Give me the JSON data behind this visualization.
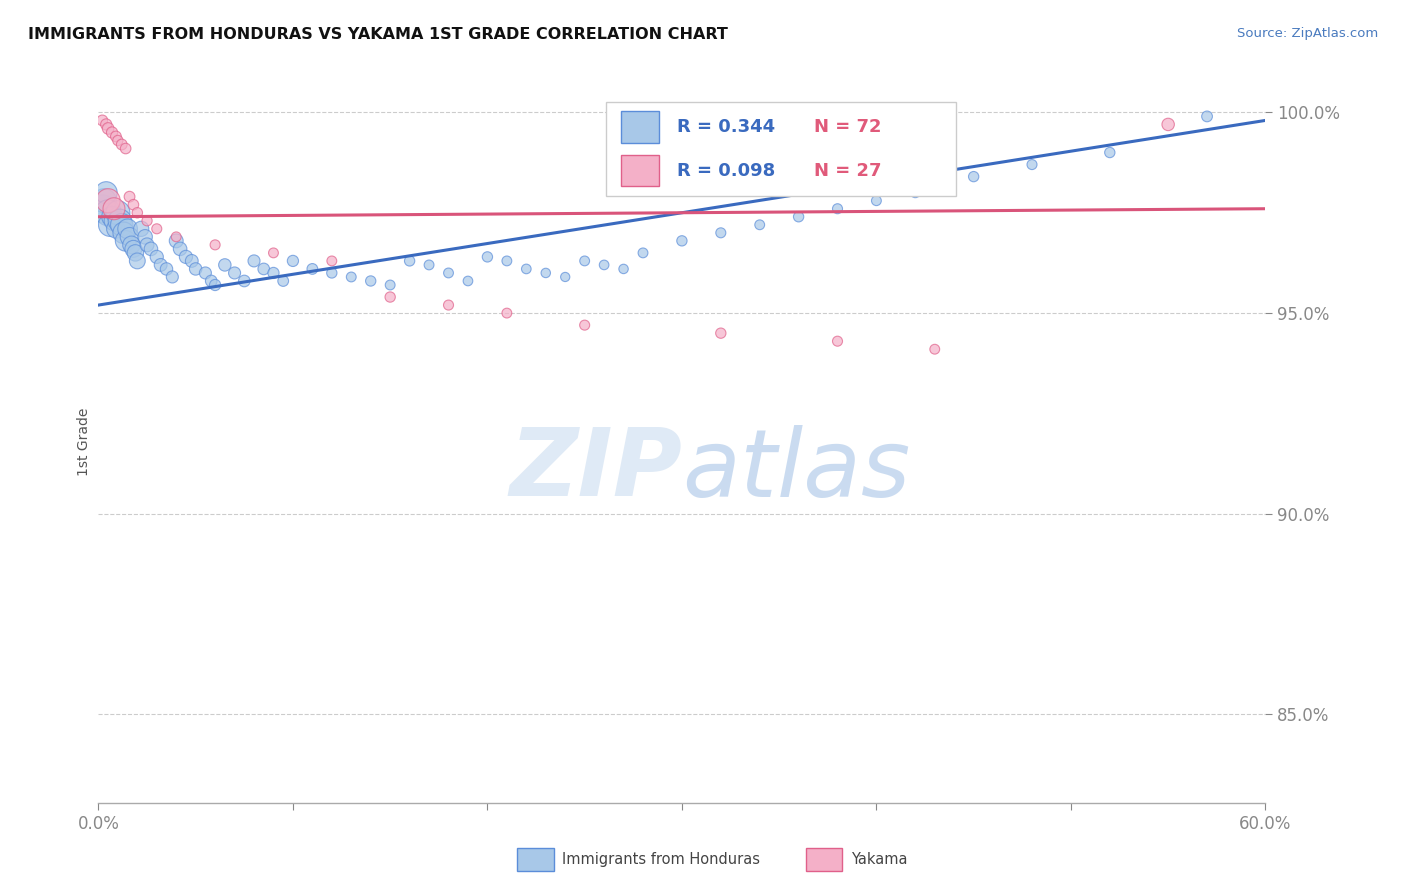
{
  "title": "IMMIGRANTS FROM HONDURAS VS YAKAMA 1ST GRADE CORRELATION CHART",
  "source_text": "Source: ZipAtlas.com",
  "ylabel": "1st Grade",
  "xlim": [
    0.0,
    0.6
  ],
  "ylim": [
    0.828,
    1.008
  ],
  "yticks": [
    0.85,
    0.9,
    0.95,
    1.0
  ],
  "yticklabels": [
    "85.0%",
    "90.0%",
    "95.0%",
    "100.0%"
  ],
  "legend_r_blue": "R = 0.344",
  "legend_n_blue": "N = 72",
  "legend_r_pink": "R = 0.098",
  "legend_n_pink": "N = 27",
  "legend_label_blue": "Immigrants from Honduras",
  "legend_label_pink": "Yakama",
  "blue_color": "#a8c8e8",
  "pink_color": "#f4b0c8",
  "blue_edge_color": "#5b8dd9",
  "pink_edge_color": "#e0608a",
  "blue_line_color": "#3a6abf",
  "pink_line_color": "#d9547a",
  "blue_trend_x": [
    0.0,
    0.6
  ],
  "blue_trend_y": [
    0.952,
    0.998
  ],
  "pink_trend_x": [
    0.0,
    0.6
  ],
  "pink_trend_y": [
    0.974,
    0.976
  ],
  "blue_scatter_x": [
    0.002,
    0.003,
    0.004,
    0.005,
    0.006,
    0.007,
    0.008,
    0.009,
    0.01,
    0.011,
    0.012,
    0.013,
    0.014,
    0.015,
    0.016,
    0.017,
    0.018,
    0.019,
    0.02,
    0.022,
    0.024,
    0.025,
    0.027,
    0.03,
    0.032,
    0.035,
    0.038,
    0.04,
    0.042,
    0.045,
    0.048,
    0.05,
    0.055,
    0.058,
    0.06,
    0.065,
    0.07,
    0.075,
    0.08,
    0.085,
    0.09,
    0.095,
    0.1,
    0.11,
    0.12,
    0.13,
    0.14,
    0.15,
    0.16,
    0.17,
    0.18,
    0.19,
    0.2,
    0.21,
    0.22,
    0.23,
    0.24,
    0.25,
    0.26,
    0.27,
    0.28,
    0.3,
    0.32,
    0.34,
    0.36,
    0.38,
    0.4,
    0.42,
    0.45,
    0.48,
    0.52,
    0.57
  ],
  "blue_scatter_y": [
    0.976,
    0.978,
    0.98,
    0.975,
    0.972,
    0.974,
    0.973,
    0.971,
    0.975,
    0.973,
    0.972,
    0.97,
    0.968,
    0.971,
    0.969,
    0.967,
    0.966,
    0.965,
    0.963,
    0.971,
    0.969,
    0.967,
    0.966,
    0.964,
    0.962,
    0.961,
    0.959,
    0.968,
    0.966,
    0.964,
    0.963,
    0.961,
    0.96,
    0.958,
    0.957,
    0.962,
    0.96,
    0.958,
    0.963,
    0.961,
    0.96,
    0.958,
    0.963,
    0.961,
    0.96,
    0.959,
    0.958,
    0.957,
    0.963,
    0.962,
    0.96,
    0.958,
    0.964,
    0.963,
    0.961,
    0.96,
    0.959,
    0.963,
    0.962,
    0.961,
    0.965,
    0.968,
    0.97,
    0.972,
    0.974,
    0.976,
    0.978,
    0.98,
    0.984,
    0.987,
    0.99,
    0.999
  ],
  "blue_scatter_sizes": [
    400,
    300,
    250,
    350,
    280,
    220,
    200,
    180,
    300,
    280,
    260,
    240,
    220,
    200,
    180,
    160,
    150,
    140,
    130,
    120,
    110,
    100,
    95,
    90,
    85,
    80,
    75,
    100,
    95,
    90,
    85,
    80,
    75,
    70,
    65,
    80,
    75,
    70,
    75,
    70,
    65,
    60,
    65,
    60,
    55,
    50,
    55,
    50,
    55,
    50,
    50,
    48,
    55,
    50,
    48,
    46,
    44,
    50,
    48,
    46,
    50,
    55,
    52,
    50,
    55,
    52,
    50,
    52,
    55,
    52,
    55,
    60
  ],
  "pink_scatter_x": [
    0.002,
    0.004,
    0.005,
    0.007,
    0.009,
    0.01,
    0.012,
    0.014,
    0.016,
    0.018,
    0.02,
    0.025,
    0.03,
    0.04,
    0.06,
    0.09,
    0.12,
    0.15,
    0.18,
    0.21,
    0.25,
    0.32,
    0.38,
    0.43,
    0.005,
    0.008,
    0.55
  ],
  "pink_scatter_y": [
    0.998,
    0.997,
    0.996,
    0.995,
    0.994,
    0.993,
    0.992,
    0.991,
    0.979,
    0.977,
    0.975,
    0.973,
    0.971,
    0.969,
    0.967,
    0.965,
    0.963,
    0.954,
    0.952,
    0.95,
    0.947,
    0.945,
    0.943,
    0.941,
    0.978,
    0.976,
    0.997
  ],
  "pink_scatter_sizes": [
    60,
    65,
    70,
    65,
    60,
    55,
    60,
    58,
    60,
    58,
    56,
    54,
    52,
    50,
    52,
    50,
    50,
    55,
    52,
    50,
    52,
    55,
    52,
    50,
    300,
    250,
    80
  ]
}
